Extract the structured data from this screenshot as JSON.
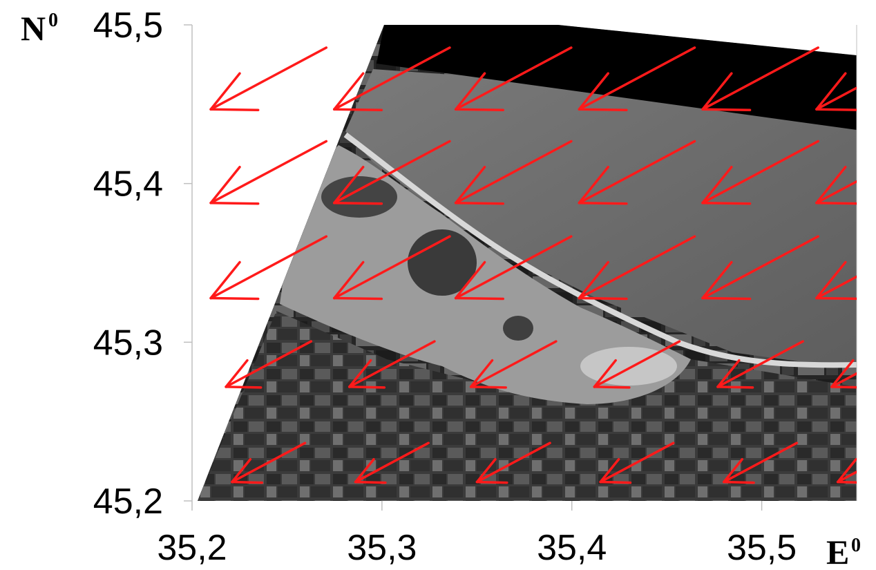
{
  "map": {
    "x_unit": "E",
    "x_unit_superscript": "0",
    "y_unit": "N",
    "y_unit_superscript": "0",
    "x_range": [
      35.2,
      35.55
    ],
    "y_range": [
      45.2,
      45.5
    ],
    "x_ticks": [
      {
        "value": 35.2,
        "label": "35,2"
      },
      {
        "value": 35.3,
        "label": "35,3"
      },
      {
        "value": 35.4,
        "label": "35,4"
      },
      {
        "value": 35.5,
        "label": "35,5"
      }
    ],
    "y_ticks": [
      {
        "value": 45.2,
        "label": "45,2"
      },
      {
        "value": 45.3,
        "label": "45,3"
      },
      {
        "value": 45.4,
        "label": "45,4"
      },
      {
        "value": 45.5,
        "label": "45,5"
      }
    ],
    "image_description_layers": [
      "sea",
      "lagoon",
      "sand-spit",
      "agricultural-fields",
      "no-data-black-band"
    ],
    "colors": {
      "arrow": "#ff1a1a",
      "sea": "#6e6e6e",
      "lagoon": "#9a9a9a",
      "land": "#3a3a3a",
      "no_data": "#000000",
      "axis": "#bfbfbf"
    },
    "vector_field": {
      "description": "wind/current vectors pointing toward south-west",
      "grid_x": [
        35.233,
        35.298,
        35.362,
        35.427,
        35.492,
        35.552
      ],
      "grid_y": [
        45.461,
        45.402,
        45.342,
        45.281,
        45.219
      ]
    }
  }
}
